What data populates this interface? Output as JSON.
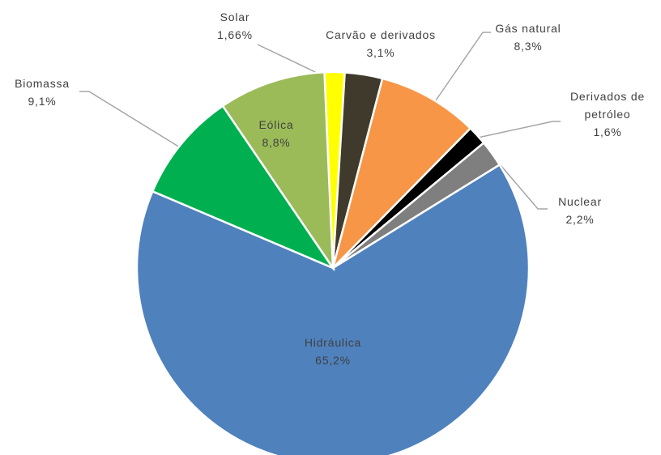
{
  "chart_data": {
    "type": "pie",
    "categories": [
      "Solar",
      "Carvão e derivados",
      "Gás natural",
      "Derivados de petróleo",
      "Nuclear",
      "Hidráulica",
      "Biomassa",
      "Eólica"
    ],
    "values": [
      1.66,
      3.1,
      8.3,
      1.6,
      2.2,
      65.2,
      9.1,
      8.8
    ],
    "value_labels": [
      "1,66%",
      "3,1%",
      "8,3%",
      "1,6%",
      "2,2%",
      "65,2%",
      "9,1%",
      "8,8%"
    ],
    "colors": [
      "#ffff00",
      "#403a2c",
      "#f79646",
      "#000000",
      "#7f7f7f",
      "#4f81bd",
      "#00b050",
      "#9bbb59"
    ]
  }
}
